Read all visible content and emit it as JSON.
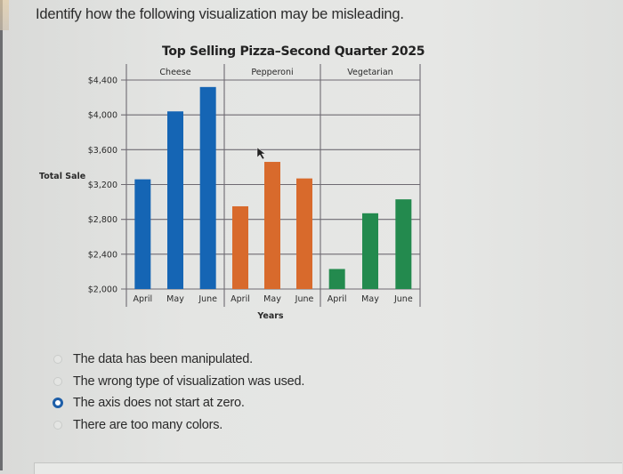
{
  "question": {
    "text": "Identify how the following visualization may be misleading."
  },
  "chart": {
    "title": "Top Selling Pizza–Second Quarter 2025",
    "ylabel": "Total Sale",
    "xlabel": "Years",
    "groups": [
      "Cheese",
      "Pepperoni",
      "Vegetarian"
    ],
    "months": [
      "April",
      "May",
      "June"
    ],
    "yticks": [
      "$4,400",
      "$4,000",
      "$3,600",
      "$3,200",
      "$2,800",
      "$2,400",
      "$2,000"
    ],
    "colors": {
      "Cheese": "#1565b4",
      "Pepperoni": "#d86a2c",
      "Vegetarian": "#238a4e",
      "grid": "#6e6a72"
    }
  },
  "chart_data": {
    "type": "bar",
    "title": "Top Selling Pizza–Second Quarter 2025",
    "xlabel": "Years",
    "ylabel": "Total Sale",
    "categories": [
      "April",
      "May",
      "June"
    ],
    "group_labels": [
      "Cheese",
      "Pepperoni",
      "Vegetarian"
    ],
    "series": [
      {
        "name": "Cheese",
        "color": "#1565b4",
        "values": [
          3260,
          4040,
          4320
        ]
      },
      {
        "name": "Pepperoni",
        "color": "#d86a2c",
        "values": [
          2950,
          3460,
          3270
        ]
      },
      {
        "name": "Vegetarian",
        "color": "#238a4e",
        "values": [
          2230,
          2870,
          3030
        ]
      }
    ],
    "yticks": [
      2000,
      2400,
      2800,
      3200,
      3600,
      4000,
      4400
    ],
    "ylim": [
      2000,
      4400
    ],
    "grid": true,
    "legend": "group headers above panels"
  },
  "answers": {
    "options": [
      {
        "label": "The data has been manipulated.",
        "selected": false
      },
      {
        "label": "The wrong type of visualization was used.",
        "selected": false
      },
      {
        "label": "The axis does not start at zero.",
        "selected": true
      },
      {
        "label": "There are too many colors.",
        "selected": false
      }
    ]
  }
}
